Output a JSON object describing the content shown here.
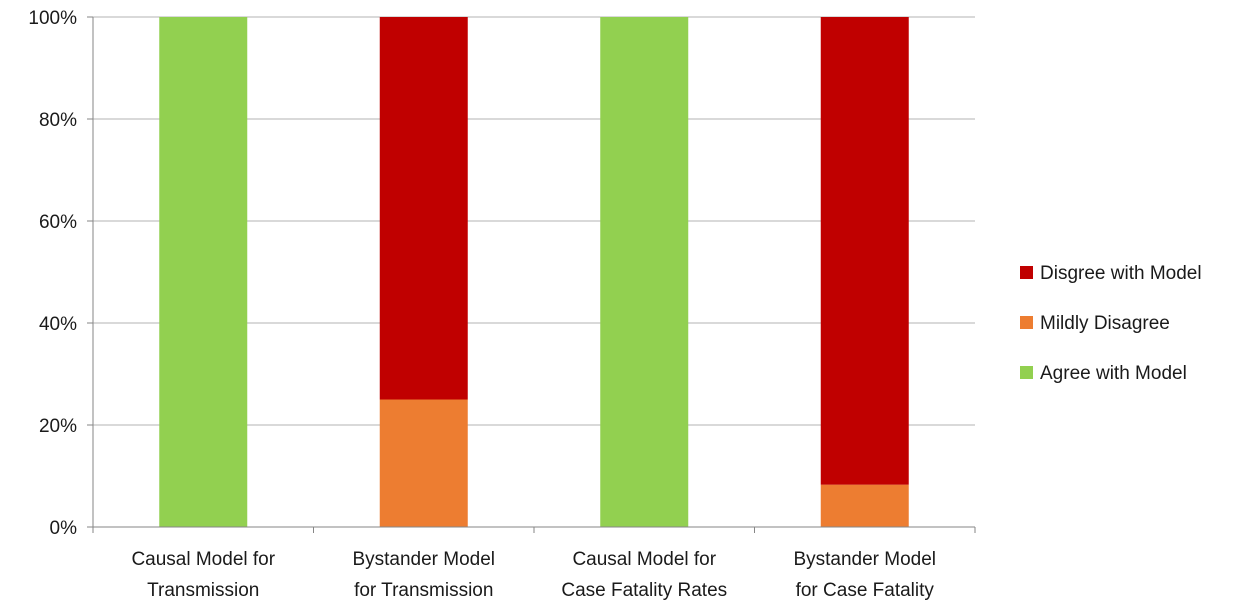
{
  "chart_data": {
    "type": "bar",
    "stacked": true,
    "normalized": true,
    "categories": [
      [
        "Causal Model for",
        "Transmission"
      ],
      [
        "Bystander Model",
        "for Transmission"
      ],
      [
        "Causal Model for",
        "Case Fatality Rates"
      ],
      [
        "Bystander Model",
        "for Case Fatality"
      ]
    ],
    "series": [
      {
        "name": "Agree with Model",
        "color": "#92d050",
        "values": [
          100,
          0,
          100,
          0
        ]
      },
      {
        "name": "Mildly Disagree",
        "color": "#ed7d31",
        "values": [
          0,
          25,
          0,
          8.3
        ]
      },
      {
        "name": "Disgree with Model",
        "color": "#c00000",
        "values": [
          0,
          75,
          0,
          91.7
        ]
      }
    ],
    "ylim": [
      0,
      100
    ],
    "yticks": [
      0,
      20,
      40,
      60,
      80,
      100
    ],
    "ytick_labels": [
      "0%",
      "20%",
      "40%",
      "60%",
      "80%",
      "100%"
    ],
    "legend_order": [
      "Disgree with Model",
      "Mildly Disagree",
      "Agree with Model"
    ],
    "legend_position": "right",
    "grid": true,
    "gridline_color": "#b3b3b3",
    "axis_color": "#868686"
  }
}
